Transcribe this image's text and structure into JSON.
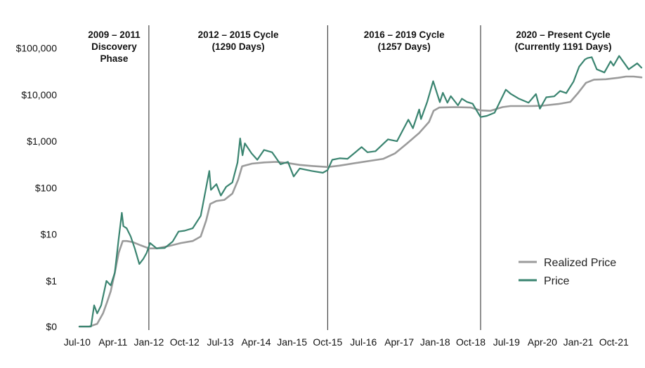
{
  "chart_data": {
    "type": "line",
    "title": "",
    "xlabel": "",
    "ylabel": "",
    "y_scale": "log",
    "grid": false,
    "legend_position": "bottom-right",
    "x_range": [
      "2010-07-18",
      "2022-04-30"
    ],
    "x_tick_labels": [
      {
        "date": "2010-07-01",
        "label": "Jul-10"
      },
      {
        "date": "2011-04-01",
        "label": "Apr-11"
      },
      {
        "date": "2012-01-01",
        "label": "Jan-12"
      },
      {
        "date": "2012-10-01",
        "label": "Oct-12"
      },
      {
        "date": "2013-07-01",
        "label": "Jul-13"
      },
      {
        "date": "2014-04-01",
        "label": "Apr-14"
      },
      {
        "date": "2015-01-01",
        "label": "Jan-15"
      },
      {
        "date": "2015-10-01",
        "label": "Oct-15"
      },
      {
        "date": "2016-07-01",
        "label": "Jul-16"
      },
      {
        "date": "2017-04-01",
        "label": "Apr-17"
      },
      {
        "date": "2018-01-01",
        "label": "Jan-18"
      },
      {
        "date": "2018-10-01",
        "label": "Oct-18"
      },
      {
        "date": "2019-07-01",
        "label": "Jul-19"
      },
      {
        "date": "2020-04-01",
        "label": "Apr-20"
      },
      {
        "date": "2021-01-01",
        "label": "Jan-21"
      },
      {
        "date": "2021-10-01",
        "label": "Oct-21"
      }
    ],
    "y_tick_labels": [
      {
        "value": 0,
        "label": "$0"
      },
      {
        "value": 1,
        "label": "$1"
      },
      {
        "value": 10,
        "label": "$10"
      },
      {
        "value": 100,
        "label": "$100"
      },
      {
        "value": 1000,
        "label": "$1,000"
      },
      {
        "value": 10000,
        "label": "$10,000"
      },
      {
        "value": 100000,
        "label": "$100,000"
      }
    ],
    "phases": [
      {
        "start": "2010-07-18",
        "lines": [
          "2009 – 2011",
          "Discovery",
          "Phase"
        ]
      },
      {
        "start": "2012-01-01",
        "lines": [
          "2012 – 2015 Cycle",
          "(1290 Days)"
        ]
      },
      {
        "start": "2015-10-01",
        "lines": [
          "2016 – 2019 Cycle",
          "(1257 Days)"
        ]
      },
      {
        "start": "2018-12-15",
        "lines": [
          "2020 – Present Cycle",
          "(Currently 1191 Days)"
        ]
      }
    ],
    "dividers": [
      "2012-01-01",
      "2015-10-01",
      "2018-12-15"
    ],
    "series": [
      {
        "name": "Realized Price",
        "color": "#9b9b9b",
        "points": [
          [
            "2010-07-18",
            0.1
          ],
          [
            "2010-10-01",
            0.1
          ],
          [
            "2010-12-01",
            0.12
          ],
          [
            "2011-01-15",
            0.2
          ],
          [
            "2011-02-15",
            0.35
          ],
          [
            "2011-03-15",
            0.6
          ],
          [
            "2011-04-15",
            1.5
          ],
          [
            "2011-05-15",
            4
          ],
          [
            "2011-06-15",
            7.2
          ],
          [
            "2011-07-15",
            7.2
          ],
          [
            "2011-09-01",
            6.8
          ],
          [
            "2011-11-01",
            5.8
          ],
          [
            "2012-01-01",
            5
          ],
          [
            "2012-03-01",
            5
          ],
          [
            "2012-06-01",
            5.6
          ],
          [
            "2012-09-01",
            6.5
          ],
          [
            "2012-12-01",
            7.2
          ],
          [
            "2013-02-01",
            9
          ],
          [
            "2013-03-15",
            20
          ],
          [
            "2013-04-15",
            45
          ],
          [
            "2013-06-01",
            52
          ],
          [
            "2013-08-01",
            55
          ],
          [
            "2013-10-01",
            75
          ],
          [
            "2013-11-15",
            150
          ],
          [
            "2013-12-15",
            290
          ],
          [
            "2014-03-01",
            330
          ],
          [
            "2014-06-01",
            350
          ],
          [
            "2014-09-01",
            360
          ],
          [
            "2014-12-01",
            340
          ],
          [
            "2015-03-01",
            310
          ],
          [
            "2015-06-01",
            295
          ],
          [
            "2015-10-01",
            280
          ],
          [
            "2016-01-01",
            300
          ],
          [
            "2016-06-01",
            350
          ],
          [
            "2016-12-01",
            420
          ],
          [
            "2017-03-01",
            550
          ],
          [
            "2017-06-01",
            900
          ],
          [
            "2017-09-01",
            1500
          ],
          [
            "2017-11-15",
            2600
          ],
          [
            "2017-12-20",
            4500
          ],
          [
            "2018-02-01",
            5300
          ],
          [
            "2018-06-01",
            5400
          ],
          [
            "2018-10-01",
            5300
          ],
          [
            "2018-12-15",
            4600
          ],
          [
            "2019-03-01",
            4500
          ],
          [
            "2019-06-01",
            5400
          ],
          [
            "2019-08-01",
            5700
          ],
          [
            "2020-01-01",
            5700
          ],
          [
            "2020-04-01",
            5800
          ],
          [
            "2020-08-01",
            6300
          ],
          [
            "2020-11-01",
            7000
          ],
          [
            "2021-01-01",
            11000
          ],
          [
            "2021-03-01",
            18000
          ],
          [
            "2021-05-01",
            21000
          ],
          [
            "2021-08-01",
            21500
          ],
          [
            "2021-11-01",
            23000
          ],
          [
            "2022-01-01",
            24500
          ],
          [
            "2022-03-01",
            24500
          ],
          [
            "2022-04-30",
            23500
          ]
        ]
      },
      {
        "name": "Price",
        "color": "#3a8470",
        "points": [
          [
            "2010-07-18",
            0.05
          ],
          [
            "2010-08-15",
            0.07
          ],
          [
            "2010-09-15",
            0.06
          ],
          [
            "2010-10-15",
            0.1
          ],
          [
            "2010-11-08",
            0.3
          ],
          [
            "2010-12-01",
            0.2
          ],
          [
            "2011-01-01",
            0.3
          ],
          [
            "2011-02-10",
            1.0
          ],
          [
            "2011-03-15",
            0.8
          ],
          [
            "2011-04-15",
            1.5
          ],
          [
            "2011-05-15",
            8
          ],
          [
            "2011-06-08",
            29
          ],
          [
            "2011-06-20",
            15
          ],
          [
            "2011-07-15",
            13.5
          ],
          [
            "2011-08-15",
            9
          ],
          [
            "2011-09-15",
            5
          ],
          [
            "2011-10-20",
            2.3
          ],
          [
            "2011-11-20",
            3
          ],
          [
            "2011-12-15",
            4
          ],
          [
            "2012-01-10",
            6.5
          ],
          [
            "2012-03-01",
            5
          ],
          [
            "2012-05-01",
            5.1
          ],
          [
            "2012-07-01",
            7
          ],
          [
            "2012-08-15",
            11.5
          ],
          [
            "2012-10-01",
            12
          ],
          [
            "2012-12-01",
            13.5
          ],
          [
            "2013-02-01",
            25
          ],
          [
            "2013-04-08",
            230
          ],
          [
            "2013-04-20",
            90
          ],
          [
            "2013-06-01",
            120
          ],
          [
            "2013-07-05",
            68
          ],
          [
            "2013-08-15",
            105
          ],
          [
            "2013-10-01",
            130
          ],
          [
            "2013-11-10",
            350
          ],
          [
            "2013-11-30",
            1150
          ],
          [
            "2013-12-18",
            500
          ],
          [
            "2014-01-05",
            900
          ],
          [
            "2014-02-25",
            550
          ],
          [
            "2014-04-10",
            400
          ],
          [
            "2014-06-01",
            650
          ],
          [
            "2014-08-01",
            580
          ],
          [
            "2014-10-05",
            320
          ],
          [
            "2014-12-01",
            360
          ],
          [
            "2015-01-14",
            175
          ],
          [
            "2015-03-01",
            260
          ],
          [
            "2015-06-01",
            230
          ],
          [
            "2015-08-25",
            210
          ],
          [
            "2015-10-01",
            240
          ],
          [
            "2015-11-05",
            400
          ],
          [
            "2016-01-01",
            430
          ],
          [
            "2016-03-01",
            420
          ],
          [
            "2016-06-17",
            750
          ],
          [
            "2016-08-01",
            580
          ],
          [
            "2016-10-01",
            610
          ],
          [
            "2017-01-05",
            1100
          ],
          [
            "2017-03-15",
            1000
          ],
          [
            "2017-06-10",
            2900
          ],
          [
            "2017-07-15",
            1900
          ],
          [
            "2017-09-01",
            4800
          ],
          [
            "2017-09-15",
            3000
          ],
          [
            "2017-11-01",
            7000
          ],
          [
            "2017-12-17",
            19500
          ],
          [
            "2018-02-06",
            6900
          ],
          [
            "2018-03-01",
            11000
          ],
          [
            "2018-04-05",
            6700
          ],
          [
            "2018-05-01",
            9300
          ],
          [
            "2018-06-25",
            5900
          ],
          [
            "2018-07-25",
            8200
          ],
          [
            "2018-09-01",
            7000
          ],
          [
            "2018-10-15",
            6400
          ],
          [
            "2018-11-20",
            4300
          ],
          [
            "2018-12-15",
            3300
          ],
          [
            "2019-02-01",
            3500
          ],
          [
            "2019-04-01",
            4100
          ],
          [
            "2019-06-26",
            12800
          ],
          [
            "2019-08-01",
            10500
          ],
          [
            "2019-10-01",
            8300
          ],
          [
            "2019-12-17",
            6700
          ],
          [
            "2020-02-12",
            10300
          ],
          [
            "2020-03-13",
            5000
          ],
          [
            "2020-05-01",
            8800
          ],
          [
            "2020-07-01",
            9200
          ],
          [
            "2020-08-15",
            12000
          ],
          [
            "2020-10-01",
            10800
          ],
          [
            "2020-11-25",
            19000
          ],
          [
            "2021-01-08",
            40000
          ],
          [
            "2021-02-21",
            57000
          ],
          [
            "2021-03-13",
            61000
          ],
          [
            "2021-04-14",
            64000
          ],
          [
            "2021-05-23",
            35000
          ],
          [
            "2021-07-20",
            30000
          ],
          [
            "2021-09-06",
            52000
          ],
          [
            "2021-09-28",
            42000
          ],
          [
            "2021-11-10",
            68000
          ],
          [
            "2022-01-22",
            35000
          ],
          [
            "2022-03-28",
            47000
          ],
          [
            "2022-04-30",
            38000
          ]
        ]
      }
    ]
  }
}
